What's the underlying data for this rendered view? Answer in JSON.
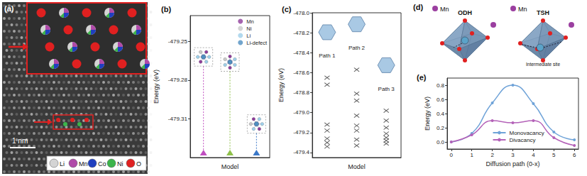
{
  "image_panel": {
    "label": "(a)",
    "scale_bar": "1 nm",
    "legend": [
      {
        "name": "Li",
        "color": "#d4d4d4"
      },
      {
        "name": "Mn",
        "color": "#b04aa8"
      },
      {
        "name": "Co",
        "color": "#1f3fbf"
      },
      {
        "name": "Ni",
        "color": "#3cb44b"
      },
      {
        "name": "O",
        "color": "#e02020"
      }
    ]
  },
  "diagram_panel": {
    "label": "(d)",
    "atom_colors": {
      "Mn": "#9b3fa0"
    },
    "sites": [
      {
        "label": "ODH",
        "atom": "Mn"
      },
      {
        "label": "TSH",
        "atom": "Mn",
        "note": "Intermediate site"
      }
    ]
  },
  "chart_data": [
    {
      "type": "scatter",
      "title": "(b)",
      "xlabel": "Model",
      "ylabel": "Energy (eV)",
      "categories": [
        null,
        null,
        null
      ],
      "values": [
        -479.262,
        -479.266,
        -479.314
      ],
      "colors": [
        "#c04fc0",
        "#8fc04a",
        "#3a78c8"
      ],
      "marker": "triangle",
      "legend_items": [
        {
          "name": "Mn",
          "color": "#8e3c9a"
        },
        {
          "name": "Ni",
          "color": "#c9c9c9"
        },
        {
          "name": "Li",
          "color": "#9fd0ea"
        },
        {
          "name": "Li-defect",
          "color": "#4f8fc0"
        }
      ],
      "legend": "upper right",
      "ylim": [
        -479.34,
        -479.23
      ],
      "yticks": [
        -479.25,
        -479.28,
        -479.31
      ],
      "grid": false,
      "tick_labels": "y"
    },
    {
      "type": "scatter",
      "title": "(c)",
      "xlabel": "Model",
      "ylabel": "Energy (eV)",
      "series": [
        {
          "name": "Path 1",
          "values": [
            -478.65,
            -478.72,
            -479.12,
            -479.18,
            -479.26,
            -479.3,
            -479.34
          ]
        },
        {
          "name": "Path 2",
          "values": [
            -478.57,
            -478.81,
            -478.88,
            -479.03,
            -479.13,
            -479.18,
            -479.27,
            -479.33
          ]
        },
        {
          "name": "Path 3",
          "values": [
            -478.98,
            -479.08,
            -479.15,
            -479.21,
            -479.25,
            -479.28,
            -479.31
          ]
        }
      ],
      "marker": "x",
      "color": "#333333",
      "ylim": [
        -479.45,
        -478.0
      ],
      "yticks": [
        {
          "value": -478.0,
          "label": "-478.0"
        },
        -478.2,
        -478.4,
        -478.6,
        -478.8,
        {
          "value": -479.0,
          "label": "-479.0"
        },
        -479.2,
        -479.4
      ],
      "grid": false,
      "tick_labels": "y"
    },
    {
      "type": "line",
      "title": "(e)",
      "xlabel": "Diffusion path (0-x)",
      "ylabel": "Energy (eV)",
      "x": [
        0,
        1,
        2,
        3,
        4,
        5,
        6
      ],
      "series": [
        {
          "name": "Monovacancy",
          "color": "#6fa3d8",
          "values": [
            0.0,
            0.12,
            0.55,
            0.8,
            0.54,
            0.14,
            0.03
          ]
        },
        {
          "name": "Divacancy",
          "color": "#b462b8",
          "values": [
            0.0,
            0.1,
            0.3,
            0.27,
            0.3,
            0.06,
            -0.05
          ]
        }
      ],
      "marker": "circle",
      "line_style": "solid",
      "xlim": [
        -0.2,
        6.2
      ],
      "xticks": [
        0,
        1,
        2,
        3,
        4,
        5,
        6
      ],
      "ylim": [
        -0.1,
        0.9
      ],
      "yticks": [
        {
          "value": 0.0,
          "label": "0.0"
        },
        0.2,
        0.4,
        0.6,
        0.8
      ],
      "legend": "lower center",
      "grid": false
    }
  ]
}
